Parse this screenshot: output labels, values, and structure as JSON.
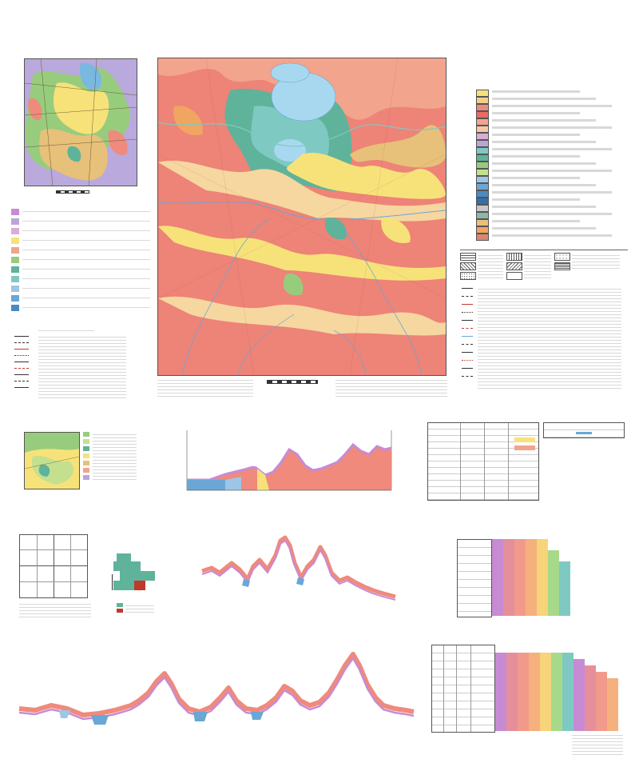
{
  "sheet": {
    "ministry_line_1": "",
    "ministry_line_2": "",
    "title": "",
    "edition": "",
    "series": "",
    "map_name": "",
    "sheet_code": "",
    "sheet_area": ""
  },
  "geomorph_scheme": {
    "title": ""
  },
  "legend": {
    "title": ""
  },
  "cross_section": {
    "title": ""
  },
  "boxes": {
    "relief_scheme": "",
    "materials_scheme": "",
    "sheets_scheme": "",
    "selenga_relations": "",
    "vitim_relations": "",
    "selenga_correlation": "",
    "vitim_correlation": "",
    "stratigraphic_table": "",
    "extra_table": ""
  },
  "map": {
    "scale_label": "",
    "lake_label": "",
    "colors": {
      "holocene": "#f6d7a0",
      "pleistocene_pink": "#ef8a7c",
      "pleistocene_salmon": "#f2a48c",
      "alluvium_yellow": "#f7e27a",
      "glacial_green": "#5fb39a",
      "lake_blue": "#a8d8ef",
      "lavender": "#b8a6d9"
    }
  },
  "legend_swatches": [
    "#f7e27a",
    "#f2d08a",
    "#ef8a7c",
    "#e96b62",
    "#f2a48c",
    "#f6c6a8",
    "#d9aed3",
    "#b8a6d9",
    "#7fc9c3",
    "#5fb39a",
    "#98cc7d",
    "#c4e08f",
    "#9cc6e6",
    "#6aa7d6",
    "#4a8ac2",
    "#3070b0",
    "#c8c8c8",
    "#8bb8a8",
    "#e7c07a",
    "#f0a560",
    "#d9876f"
  ],
  "correlation_colors": [
    "#c78bd4",
    "#e58f9a",
    "#f19a8c",
    "#f5b07d",
    "#f7d37a",
    "#a7d98a",
    "#7fc9c3"
  ]
}
